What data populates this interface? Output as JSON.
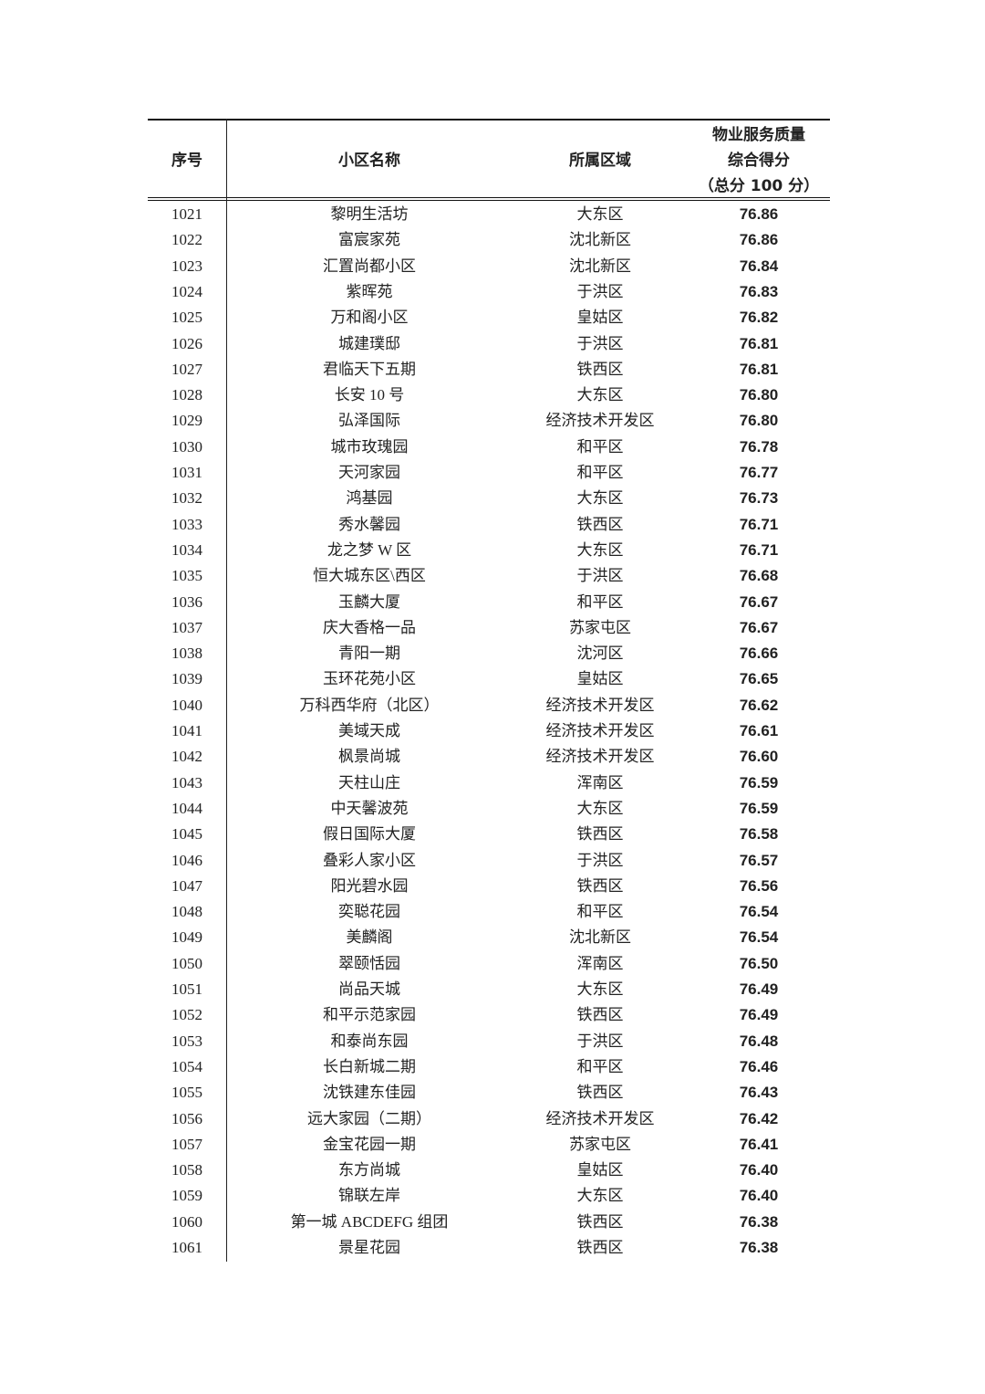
{
  "table": {
    "headers": {
      "seq": "序号",
      "name": "小区名称",
      "district": "所属区域",
      "score_line1": "物业服务质量",
      "score_line2": "综合得分",
      "score_line3": "（总分 100 分）"
    },
    "rows": [
      [
        "1021",
        "黎明生活坊",
        "大东区",
        "76.86"
      ],
      [
        "1022",
        "富宸家苑",
        "沈北新区",
        "76.86"
      ],
      [
        "1023",
        "汇置尚都小区",
        "沈北新区",
        "76.84"
      ],
      [
        "1024",
        "紫晖苑",
        "于洪区",
        "76.83"
      ],
      [
        "1025",
        "万和阁小区",
        "皇姑区",
        "76.82"
      ],
      [
        "1026",
        "城建璞邸",
        "于洪区",
        "76.81"
      ],
      [
        "1027",
        "君临天下五期",
        "铁西区",
        "76.81"
      ],
      [
        "1028",
        "长安 10 号",
        "大东区",
        "76.80"
      ],
      [
        "1029",
        "弘泽国际",
        "经济技术开发区",
        "76.80"
      ],
      [
        "1030",
        "城市玫瑰园",
        "和平区",
        "76.78"
      ],
      [
        "1031",
        "天河家园",
        "和平区",
        "76.77"
      ],
      [
        "1032",
        "鸿基园",
        "大东区",
        "76.73"
      ],
      [
        "1033",
        "秀水馨园",
        "铁西区",
        "76.71"
      ],
      [
        "1034",
        "龙之梦 W 区",
        "大东区",
        "76.71"
      ],
      [
        "1035",
        "恒大城东区\\西区",
        "于洪区",
        "76.68"
      ],
      [
        "1036",
        "玉麟大厦",
        "和平区",
        "76.67"
      ],
      [
        "1037",
        "庆大香格一品",
        "苏家屯区",
        "76.67"
      ],
      [
        "1038",
        "青阳一期",
        "沈河区",
        "76.66"
      ],
      [
        "1039",
        "玉环花苑小区",
        "皇姑区",
        "76.65"
      ],
      [
        "1040",
        "万科西华府（北区）",
        "经济技术开发区",
        "76.62"
      ],
      [
        "1041",
        "美域天成",
        "经济技术开发区",
        "76.61"
      ],
      [
        "1042",
        "枫景尚城",
        "经济技术开发区",
        "76.60"
      ],
      [
        "1043",
        "天柱山庄",
        "浑南区",
        "76.59"
      ],
      [
        "1044",
        "中天馨波苑",
        "大东区",
        "76.59"
      ],
      [
        "1045",
        "假日国际大厦",
        "铁西区",
        "76.58"
      ],
      [
        "1046",
        "叠彩人家小区",
        "于洪区",
        "76.57"
      ],
      [
        "1047",
        "阳光碧水园",
        "铁西区",
        "76.56"
      ],
      [
        "1048",
        "奕聪花园",
        "和平区",
        "76.54"
      ],
      [
        "1049",
        "美麟阁",
        "沈北新区",
        "76.54"
      ],
      [
        "1050",
        "翠颐恬园",
        "浑南区",
        "76.50"
      ],
      [
        "1051",
        "尚品天城",
        "大东区",
        "76.49"
      ],
      [
        "1052",
        "和平示范家园",
        "铁西区",
        "76.49"
      ],
      [
        "1053",
        "和泰尚东园",
        "于洪区",
        "76.48"
      ],
      [
        "1054",
        "长白新城二期",
        "和平区",
        "76.46"
      ],
      [
        "1055",
        "沈铁建东佳园",
        "铁西区",
        "76.43"
      ],
      [
        "1056",
        "远大家园（二期）",
        "经济技术开发区",
        "76.42"
      ],
      [
        "1057",
        "金宝花园一期",
        "苏家屯区",
        "76.41"
      ],
      [
        "1058",
        "东方尚城",
        "皇姑区",
        "76.40"
      ],
      [
        "1059",
        "锦联左岸",
        "大东区",
        "76.40"
      ],
      [
        "1060",
        "第一城 ABCDEFG 组团",
        "铁西区",
        "76.38"
      ],
      [
        "1061",
        "景星花园",
        "铁西区",
        "76.38"
      ]
    ]
  }
}
